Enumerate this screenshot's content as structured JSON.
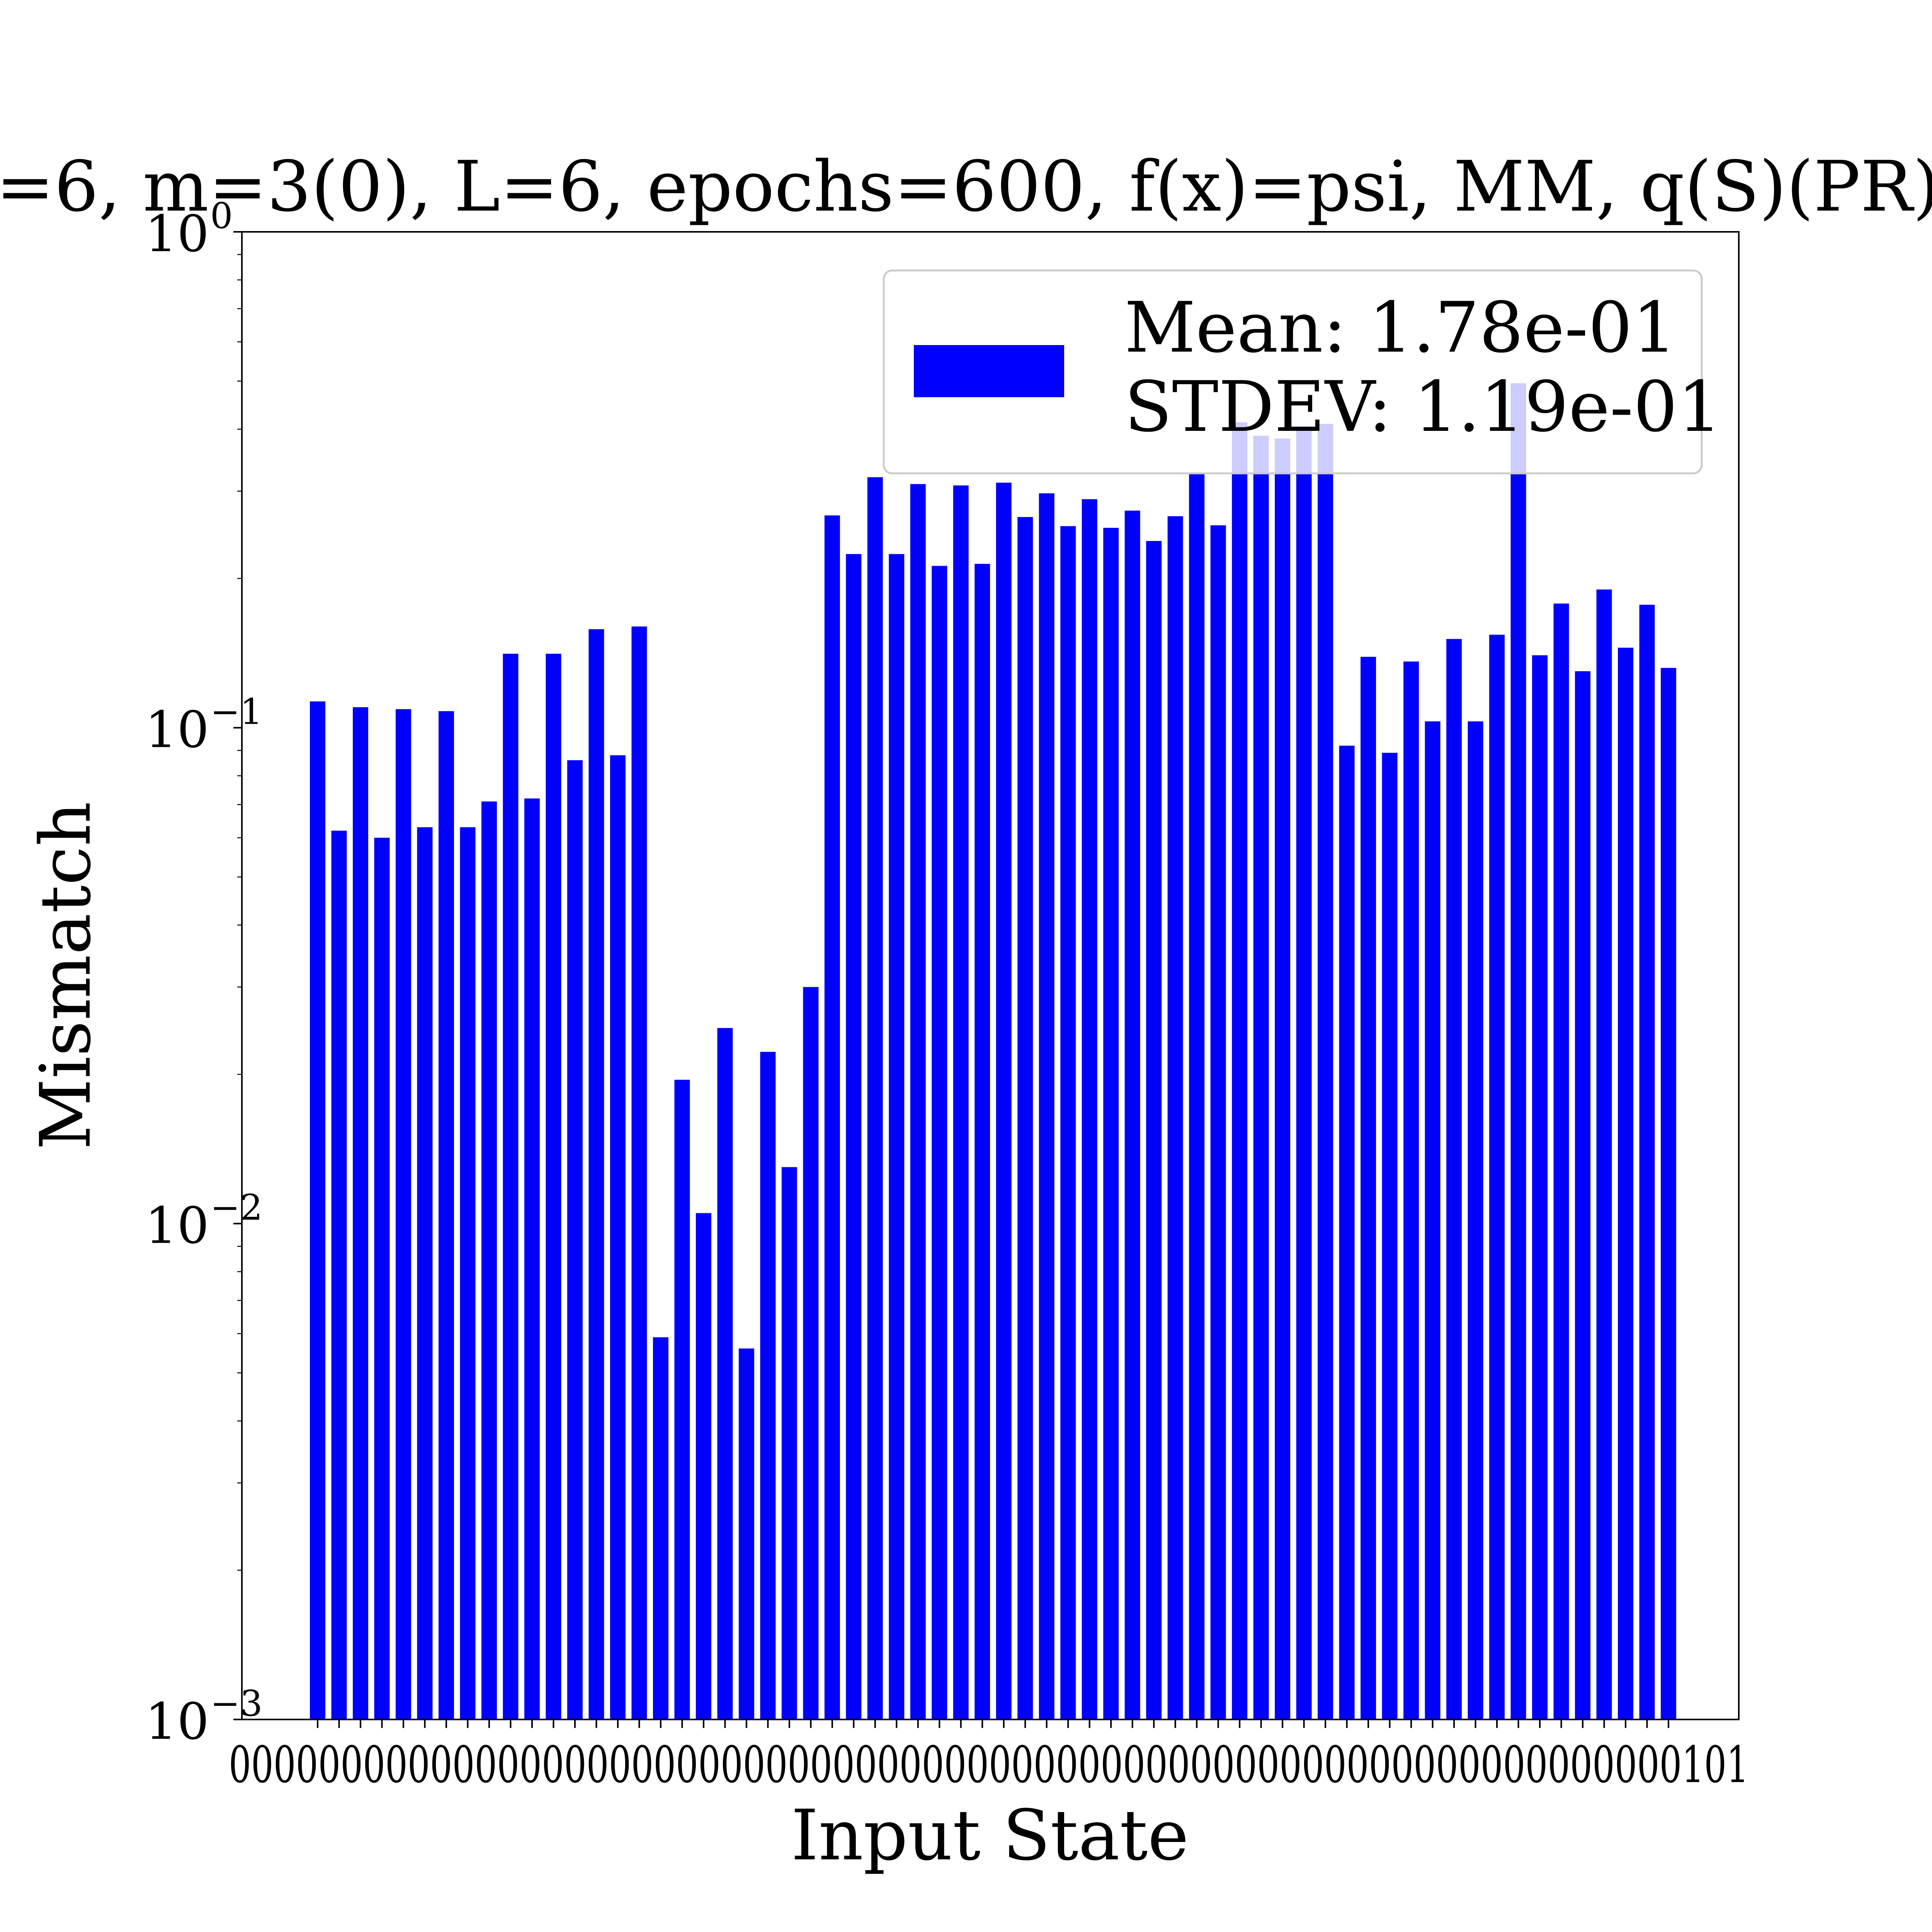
{
  "chart_data": {
    "type": "bar",
    "title": "=6, m=3(0), L=6, epochs=600, f(x)=psi, MM, q(S)(PR)",
    "xlabel": "Input State",
    "ylabel": "Mismatch",
    "yscale": "log",
    "ylim": [
      0.001,
      1
    ],
    "yticks": [
      {
        "value": 0.001,
        "base": "10",
        "exp": "−3"
      },
      {
        "value": 0.01,
        "base": "10",
        "exp": "−2"
      },
      {
        "value": 0.1,
        "base": "10",
        "exp": "−1"
      },
      {
        "value": 1,
        "base": "10",
        "exp": "0"
      }
    ],
    "xtick_labels_visible": [
      "0",
      "0",
      "0",
      "0",
      "0",
      "0",
      "0",
      "0",
      "0",
      "0",
      "0",
      "1",
      "0",
      "1",
      "0",
      "1",
      "0",
      "1",
      "0",
      "1",
      "0",
      "1",
      "0",
      "1",
      "0",
      "1",
      "0",
      "1",
      "0",
      "1",
      "0",
      "1",
      "0",
      "1",
      "0",
      "1",
      "0",
      "1",
      "0",
      "1"
    ],
    "xtick_label_text": "00000000000000000000000000000000000000000000000000000000000000000101",
    "grid": false,
    "legend": {
      "placement": "upper right",
      "entries": [
        "Mean: 1.78e-01",
        "STDEV: 1.19e-01"
      ]
    },
    "bar_color": "#0000ff",
    "series": [
      {
        "values": [
          0.113,
          0.062,
          0.11,
          0.06,
          0.109,
          0.063,
          0.108,
          0.063,
          0.071,
          0.141,
          0.072,
          0.141,
          0.086,
          0.158,
          0.088,
          0.16,
          0.0059,
          0.0195,
          0.0105,
          0.0248,
          0.0056,
          0.0222,
          0.013,
          0.03,
          0.268,
          0.224,
          0.32,
          0.224,
          0.31,
          0.212,
          0.308,
          0.214,
          0.312,
          0.266,
          0.297,
          0.255,
          0.289,
          0.253,
          0.274,
          0.238,
          0.267,
          0.325,
          0.256,
          0.413,
          0.388,
          0.383,
          0.405,
          0.41,
          0.092,
          0.139,
          0.089,
          0.136,
          0.103,
          0.151,
          0.103,
          0.154,
          0.495,
          0.14,
          0.178,
          0.13,
          0.19,
          0.145,
          0.177,
          0.132
        ]
      }
    ]
  }
}
